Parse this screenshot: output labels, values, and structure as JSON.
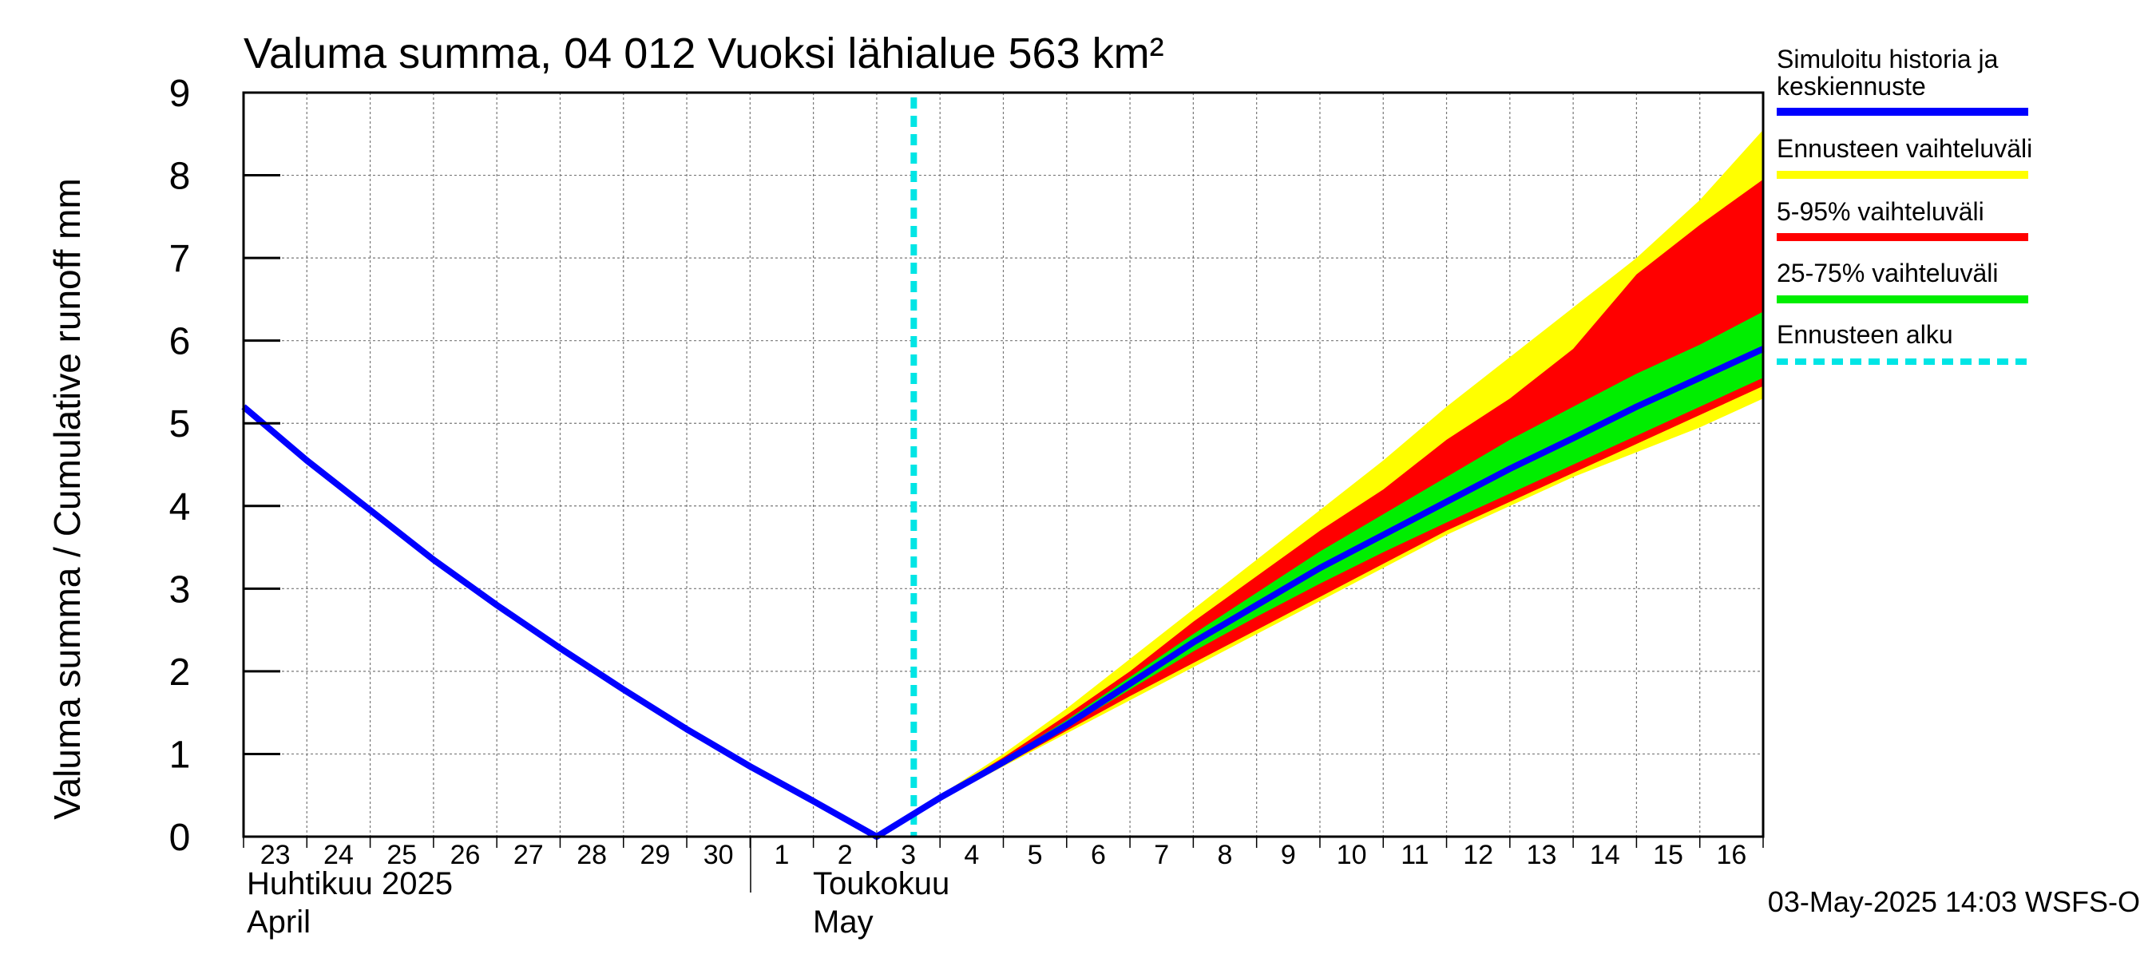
{
  "chart_data": {
    "type": "area",
    "title": "Valuma summa, 04 012 Vuoksi lähialue 563 km²",
    "ylabel": "Valuma summa / Cumulative runoff    mm",
    "ylim": [
      0,
      9
    ],
    "yticks": [
      "0",
      "1",
      "2",
      "3",
      "4",
      "5",
      "6",
      "7",
      "8",
      "9"
    ],
    "xlim": [
      "2025-04-23",
      "2025-05-17"
    ],
    "x_tick_labels": [
      "23",
      "24",
      "25",
      "26",
      "27",
      "28",
      "29",
      "30",
      "1",
      "2",
      "3",
      "4",
      "5",
      "6",
      "7",
      "8",
      "9",
      "10",
      "11",
      "12",
      "13",
      "14",
      "15",
      "16"
    ],
    "month_labels": [
      {
        "fi": "Huhtikuu  2025",
        "en": "April"
      },
      {
        "fi": "Toukokuu",
        "en": "May"
      }
    ],
    "forecast_start": "2025-05-03T14:03",
    "grid": true,
    "legend_position": "right",
    "timestamp": "03-May-2025 14:03 WSFS-O",
    "series": [
      {
        "name": "Simuloitu historia ja keskiennuste",
        "color": "#0000ff",
        "x": [
          "2025-04-23",
          "2025-04-24",
          "2025-04-25",
          "2025-04-26",
          "2025-04-27",
          "2025-04-28",
          "2025-04-29",
          "2025-04-30",
          "2025-05-01",
          "2025-05-02",
          "2025-05-03",
          "2025-05-04",
          "2025-05-05",
          "2025-05-06",
          "2025-05-07",
          "2025-05-08",
          "2025-05-09",
          "2025-05-10",
          "2025-05-11",
          "2025-05-12",
          "2025-05-13",
          "2025-05-14",
          "2025-05-15",
          "2025-05-16",
          "2025-05-17"
        ],
        "values": [
          5.2,
          4.55,
          3.95,
          3.35,
          2.8,
          2.28,
          1.78,
          1.3,
          0.85,
          0.43,
          0.0,
          0.47,
          0.9,
          1.35,
          1.85,
          2.35,
          2.8,
          3.25,
          3.65,
          4.05,
          4.45,
          4.82,
          5.2,
          5.55,
          5.9
        ]
      }
    ],
    "bands": [
      {
        "name": "Ennusteen vaihteluväli",
        "color": "#ffff00",
        "x": [
          "2025-05-03",
          "2025-05-04",
          "2025-05-05",
          "2025-05-06",
          "2025-05-07",
          "2025-05-08",
          "2025-05-09",
          "2025-05-10",
          "2025-05-11",
          "2025-05-12",
          "2025-05-13",
          "2025-05-14",
          "2025-05-15",
          "2025-05-16",
          "2025-05-17"
        ],
        "upper": [
          0.0,
          0.5,
          1.0,
          1.55,
          2.15,
          2.75,
          3.35,
          3.95,
          4.55,
          5.2,
          5.8,
          6.4,
          7.0,
          7.7,
          8.55
        ],
        "lower": [
          0.0,
          0.44,
          0.85,
          1.25,
          1.65,
          2.05,
          2.45,
          2.85,
          3.25,
          3.65,
          4.0,
          4.35,
          4.65,
          4.95,
          5.3
        ]
      },
      {
        "name": "5-95% vaihteluväli",
        "color": "#ff0000",
        "x": [
          "2025-05-03",
          "2025-05-04",
          "2025-05-05",
          "2025-05-06",
          "2025-05-07",
          "2025-05-08",
          "2025-05-09",
          "2025-05-10",
          "2025-05-11",
          "2025-05-12",
          "2025-05-13",
          "2025-05-14",
          "2025-05-15",
          "2025-05-16",
          "2025-05-17"
        ],
        "upper": [
          0.0,
          0.49,
          0.96,
          1.47,
          2.0,
          2.6,
          3.15,
          3.7,
          4.2,
          4.8,
          5.3,
          5.9,
          6.8,
          7.4,
          7.95
        ],
        "lower": [
          0.0,
          0.45,
          0.86,
          1.28,
          1.7,
          2.1,
          2.5,
          2.9,
          3.3,
          3.7,
          4.05,
          4.4,
          4.75,
          5.1,
          5.45
        ]
      },
      {
        "name": "25-75% vaihteluväli",
        "color": "#00ee00",
        "x": [
          "2025-05-03",
          "2025-05-04",
          "2025-05-05",
          "2025-05-06",
          "2025-05-07",
          "2025-05-08",
          "2025-05-09",
          "2025-05-10",
          "2025-05-11",
          "2025-05-12",
          "2025-05-13",
          "2025-05-14",
          "2025-05-15",
          "2025-05-16",
          "2025-05-17"
        ],
        "upper": [
          0.0,
          0.48,
          0.93,
          1.41,
          1.93,
          2.45,
          2.95,
          3.45,
          3.9,
          4.35,
          4.8,
          5.2,
          5.6,
          5.95,
          6.35
        ],
        "lower": [
          0.0,
          0.46,
          0.88,
          1.32,
          1.78,
          2.24,
          2.66,
          3.06,
          3.44,
          3.8,
          4.15,
          4.5,
          4.85,
          5.2,
          5.55
        ]
      }
    ],
    "forecast_marker": {
      "name": "Ennusteen alku",
      "color": "#00e5e5"
    }
  }
}
